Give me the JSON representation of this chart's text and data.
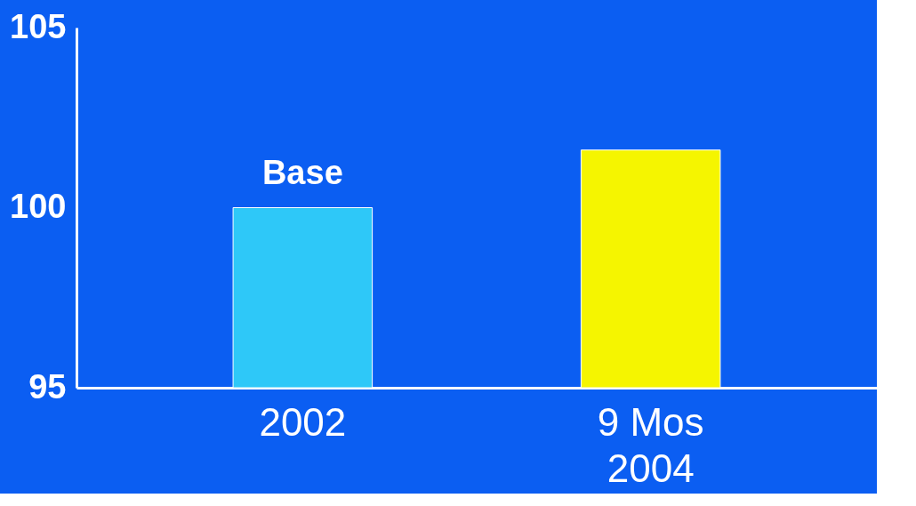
{
  "chart_data": {
    "type": "bar",
    "categories": [
      "2002",
      "9 Mos\n2004"
    ],
    "colors": [
      "#2ec8f8",
      "#f5f500"
    ],
    "values": [
      100,
      101.6
    ],
    "ylim": [
      95,
      105
    ],
    "yticks": [
      95,
      100,
      105
    ],
    "grid": false,
    "annotations": [
      {
        "text": "Base",
        "x": "2002",
        "y": 100
      }
    ]
  }
}
